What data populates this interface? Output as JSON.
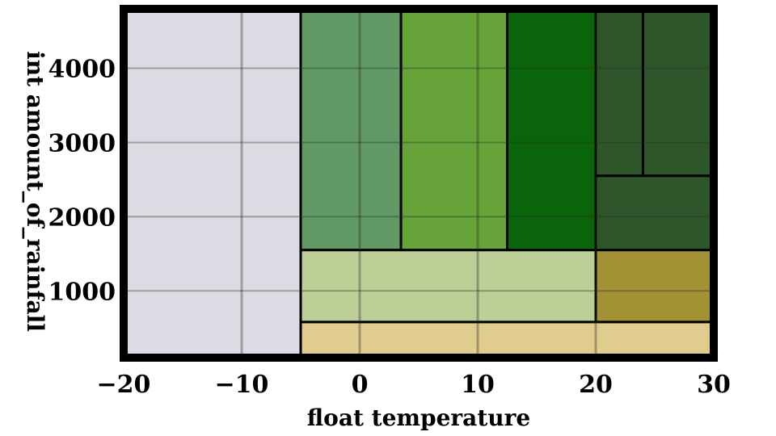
{
  "chart_data": {
    "type": "area",
    "xlabel": "float temperature",
    "ylabel": "int amount_of_rainfall",
    "xlim": [
      -20,
      30
    ],
    "ylim": [
      100,
      4800
    ],
    "grid": true,
    "x_ticks": [
      -20,
      -10,
      0,
      10,
      20,
      30
    ],
    "y_ticks": [
      1000,
      2000,
      3000,
      4000
    ],
    "regions": [
      {
        "x0": -20,
        "x1": -5,
        "y0": 100,
        "y1": 4800,
        "color": "#dcdbe4"
      },
      {
        "x0": -5,
        "x1": 3.5,
        "y0": 1550,
        "y1": 4800,
        "color": "#619a66"
      },
      {
        "x0": 3.5,
        "x1": 12.5,
        "y0": 1550,
        "y1": 4800,
        "color": "#66a338"
      },
      {
        "x0": 12.5,
        "x1": 20,
        "y0": 1550,
        "y1": 4800,
        "color": "#0a640a"
      },
      {
        "x0": 20,
        "x1": 24,
        "y0": 2550,
        "y1": 4800,
        "color": "#2d562b"
      },
      {
        "x0": 24,
        "x1": 30,
        "y0": 2550,
        "y1": 4800,
        "color": "#2d562b"
      },
      {
        "x0": 20,
        "x1": 30,
        "y0": 1550,
        "y1": 2550,
        "color": "#2d562b"
      },
      {
        "x0": -5,
        "x1": 20,
        "y0": 580,
        "y1": 1550,
        "color": "#bccf96"
      },
      {
        "x0": 20,
        "x1": 30,
        "y0": 580,
        "y1": 1550,
        "color": "#a39233"
      },
      {
        "x0": -5,
        "x1": 30,
        "y0": 100,
        "y1": 580,
        "color": "#e0cd8d"
      }
    ]
  }
}
